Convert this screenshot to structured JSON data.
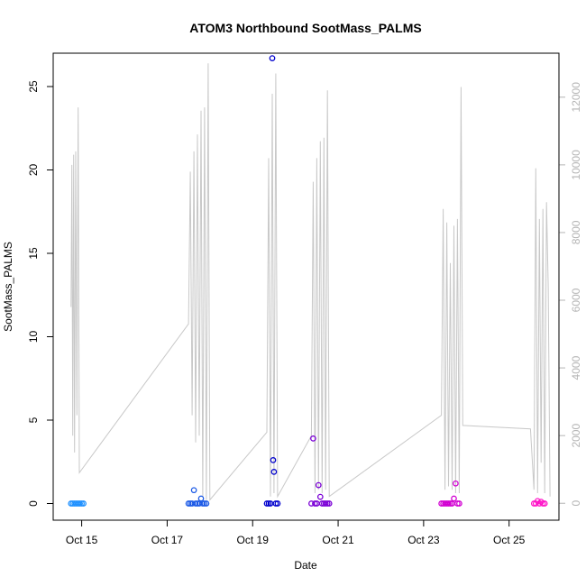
{
  "chart_data": {
    "type": "scatter",
    "title": "ATOM3 Northbound SootMass_PALMS",
    "xlabel": "Date",
    "ylabel": "SootMass_PALMS",
    "x_ticks": [
      "Oct 15",
      "Oct 17",
      "Oct 19",
      "Oct 21",
      "Oct 23",
      "Oct 25"
    ],
    "x_tick_values": [
      "2017-10-15",
      "2017-10-17",
      "2017-10-19",
      "2017-10-21",
      "2017-10-23",
      "2017-10-25"
    ],
    "xlim": [
      "2017-10-14 08:00",
      "2017-10-26 04:00"
    ],
    "ylim": [
      -1,
      27
    ],
    "y_ticks": [
      0,
      5,
      10,
      15,
      20,
      25
    ],
    "y2lim": [
      -500,
      13300
    ],
    "y2_ticks": [
      0,
      2000,
      4000,
      6000,
      8000,
      10000,
      12000
    ],
    "grid": false,
    "legend": "none",
    "flights": [
      {
        "color": "#1e90ff",
        "points": [
          {
            "x": "2017-10-14 18:00",
            "y": 0.0
          },
          {
            "x": "2017-10-14 19:00",
            "y": 0.0
          },
          {
            "x": "2017-10-14 20:00",
            "y": 0.0
          },
          {
            "x": "2017-10-14 21:00",
            "y": 0.0
          },
          {
            "x": "2017-10-14 22:00",
            "y": 0.0
          },
          {
            "x": "2017-10-14 23:00",
            "y": 0.0
          },
          {
            "x": "2017-10-15 00:00",
            "y": 0.0
          },
          {
            "x": "2017-10-15 01:00",
            "y": 0.0
          }
        ]
      },
      {
        "color": "#1c5ae6",
        "points": [
          {
            "x": "2017-10-17 12:00",
            "y": 0.0
          },
          {
            "x": "2017-10-17 13:00",
            "y": 0.0
          },
          {
            "x": "2017-10-17 14:00",
            "y": 0.0
          },
          {
            "x": "2017-10-17 15:00",
            "y": 0.8
          },
          {
            "x": "2017-10-17 16:00",
            "y": 0.0
          },
          {
            "x": "2017-10-17 17:00",
            "y": 0.0
          },
          {
            "x": "2017-10-17 18:00",
            "y": 0.0
          },
          {
            "x": "2017-10-17 19:00",
            "y": 0.3
          },
          {
            "x": "2017-10-17 20:00",
            "y": 0.0
          },
          {
            "x": "2017-10-17 21:00",
            "y": 0.0
          },
          {
            "x": "2017-10-17 22:00",
            "y": 0.0
          }
        ]
      },
      {
        "color": "#0000cd",
        "points": [
          {
            "x": "2017-10-19 08:00",
            "y": 0.0
          },
          {
            "x": "2017-10-19 09:00",
            "y": 0.0
          },
          {
            "x": "2017-10-19 10:00",
            "y": 0.0
          },
          {
            "x": "2017-10-19 11:00",
            "y": 26.7
          },
          {
            "x": "2017-10-19 11:30",
            "y": 2.6
          },
          {
            "x": "2017-10-19 12:00",
            "y": 1.9
          },
          {
            "x": "2017-10-19 13:00",
            "y": 0.0
          },
          {
            "x": "2017-10-19 14:00",
            "y": 0.0
          }
        ]
      },
      {
        "color": "#7b00d6",
        "points": [
          {
            "x": "2017-10-20 09:00",
            "y": 0.0
          },
          {
            "x": "2017-10-20 10:00",
            "y": 3.9
          },
          {
            "x": "2017-10-20 11:00",
            "y": 0.0
          },
          {
            "x": "2017-10-20 12:00",
            "y": 0.0
          },
          {
            "x": "2017-10-20 13:00",
            "y": 1.1
          },
          {
            "x": "2017-10-20 14:00",
            "y": 0.4
          },
          {
            "x": "2017-10-20 15:00",
            "y": 0.0
          },
          {
            "x": "2017-10-20 16:00",
            "y": 0.0
          },
          {
            "x": "2017-10-20 17:00",
            "y": 0.0
          },
          {
            "x": "2017-10-20 18:00",
            "y": 0.0
          },
          {
            "x": "2017-10-20 19:00",
            "y": 0.0
          }
        ]
      },
      {
        "color": "#d200d2",
        "points": [
          {
            "x": "2017-10-23 10:00",
            "y": 0.0
          },
          {
            "x": "2017-10-23 11:00",
            "y": 0.0
          },
          {
            "x": "2017-10-23 12:00",
            "y": 0.0
          },
          {
            "x": "2017-10-23 13:00",
            "y": 0.0
          },
          {
            "x": "2017-10-23 14:00",
            "y": 0.0
          },
          {
            "x": "2017-10-23 15:00",
            "y": 0.0
          },
          {
            "x": "2017-10-23 16:00",
            "y": 0.0
          },
          {
            "x": "2017-10-23 17:00",
            "y": 0.3
          },
          {
            "x": "2017-10-23 18:00",
            "y": 1.2
          },
          {
            "x": "2017-10-23 19:00",
            "y": 0.0
          },
          {
            "x": "2017-10-23 20:00",
            "y": 0.0
          }
        ]
      },
      {
        "color": "#ff14c8",
        "points": [
          {
            "x": "2017-10-25 14:00",
            "y": 0.0
          },
          {
            "x": "2017-10-25 15:00",
            "y": 0.0
          },
          {
            "x": "2017-10-25 16:00",
            "y": 0.15
          },
          {
            "x": "2017-10-25 17:00",
            "y": 0.0
          },
          {
            "x": "2017-10-25 18:00",
            "y": 0.1
          },
          {
            "x": "2017-10-25 19:00",
            "y": 0.0
          },
          {
            "x": "2017-10-25 20:00",
            "y": 0.0
          }
        ]
      }
    ],
    "altitude_series": {
      "color": "#c8c8c8",
      "points": [
        [
          "2017-10-14 18:00",
          5800
        ],
        [
          "2017-10-14 18:30",
          10000
        ],
        [
          "2017-10-14 19:00",
          2000
        ],
        [
          "2017-10-14 19:30",
          10300
        ],
        [
          "2017-10-14 20:00",
          1500
        ],
        [
          "2017-10-14 20:40",
          10400
        ],
        [
          "2017-10-14 21:20",
          2600
        ],
        [
          "2017-10-14 22:00",
          11700
        ],
        [
          "2017-10-14 22:40",
          900
        ],
        [
          "2017-10-17 12:00",
          5300
        ],
        [
          "2017-10-17 13:00",
          9800
        ],
        [
          "2017-10-17 14:00",
          2600
        ],
        [
          "2017-10-17 15:00",
          10400
        ],
        [
          "2017-10-17 16:00",
          1800
        ],
        [
          "2017-10-17 17:00",
          10900
        ],
        [
          "2017-10-17 18:00",
          2000
        ],
        [
          "2017-10-17 19:00",
          11600
        ],
        [
          "2017-10-17 20:00",
          200
        ],
        [
          "2017-10-17 21:00",
          11700
        ],
        [
          "2017-10-17 22:00",
          100
        ],
        [
          "2017-10-17 23:00",
          13000
        ],
        [
          "2017-10-18 00:00",
          100
        ],
        [
          "2017-10-19 08:00",
          2100
        ],
        [
          "2017-10-19 09:00",
          10200
        ],
        [
          "2017-10-19 10:00",
          200
        ],
        [
          "2017-10-19 11:00",
          12100
        ],
        [
          "2017-10-19 12:00",
          300
        ],
        [
          "2017-10-19 13:00",
          12700
        ],
        [
          "2017-10-19 14:00",
          200
        ],
        [
          "2017-10-20 09:00",
          2000
        ],
        [
          "2017-10-20 10:00",
          9500
        ],
        [
          "2017-10-20 11:00",
          300
        ],
        [
          "2017-10-20 12:00",
          10200
        ],
        [
          "2017-10-20 13:00",
          400
        ],
        [
          "2017-10-20 14:00",
          10700
        ],
        [
          "2017-10-20 15:00",
          300
        ],
        [
          "2017-10-20 16:00",
          10800
        ],
        [
          "2017-10-20 17:00",
          400
        ],
        [
          "2017-10-20 18:00",
          12200
        ],
        [
          "2017-10-20 19:00",
          200
        ],
        [
          "2017-10-23 10:00",
          2600
        ],
        [
          "2017-10-23 11:00",
          8700
        ],
        [
          "2017-10-23 12:00",
          400
        ],
        [
          "2017-10-23 13:00",
          8300
        ],
        [
          "2017-10-23 14:00",
          500
        ],
        [
          "2017-10-23 15:00",
          7100
        ],
        [
          "2017-10-23 16:00",
          400
        ],
        [
          "2017-10-23 17:00",
          8200
        ],
        [
          "2017-10-23 18:00",
          300
        ],
        [
          "2017-10-23 19:00",
          8400
        ],
        [
          "2017-10-23 20:00",
          300
        ],
        [
          "2017-10-23 21:00",
          12300
        ],
        [
          "2017-10-23 22:00",
          2300
        ],
        [
          "2017-10-25 12:00",
          2200
        ],
        [
          "2017-10-25 14:00",
          400
        ],
        [
          "2017-10-25 15:00",
          9900
        ],
        [
          "2017-10-25 16:00",
          300
        ],
        [
          "2017-10-25 17:00",
          8400
        ],
        [
          "2017-10-25 18:00",
          1200
        ],
        [
          "2017-10-25 19:00",
          8700
        ],
        [
          "2017-10-25 20:00",
          300
        ],
        [
          "2017-10-25 21:00",
          8900
        ],
        [
          "2017-10-25 22:00",
          6400
        ],
        [
          "2017-10-25 23:00",
          200
        ]
      ]
    }
  }
}
